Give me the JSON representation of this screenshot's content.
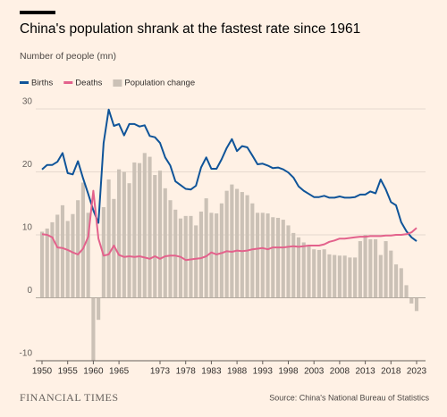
{
  "chart_data": {
    "type": "combo",
    "title": "China's population shrank at the fastest rate since 1961",
    "subtitle": "Number of people (mn)",
    "x": [
      1950,
      1951,
      1952,
      1953,
      1954,
      1955,
      1956,
      1957,
      1958,
      1959,
      1960,
      1961,
      1962,
      1963,
      1964,
      1965,
      1966,
      1967,
      1968,
      1969,
      1970,
      1971,
      1972,
      1973,
      1974,
      1975,
      1976,
      1977,
      1978,
      1979,
      1980,
      1981,
      1982,
      1983,
      1984,
      1985,
      1986,
      1987,
      1988,
      1989,
      1990,
      1991,
      1992,
      1993,
      1994,
      1995,
      1996,
      1997,
      1998,
      1999,
      2000,
      2001,
      2002,
      2003,
      2004,
      2005,
      2006,
      2007,
      2008,
      2009,
      2010,
      2011,
      2012,
      2013,
      2014,
      2015,
      2016,
      2017,
      2018,
      2019,
      2020,
      2021,
      2022,
      2023
    ],
    "series": [
      {
        "name": "Births",
        "type": "line",
        "color": "#0f5499",
        "values": [
          20.4,
          21.1,
          21.1,
          21.6,
          23.0,
          19.8,
          19.6,
          21.7,
          19.0,
          16.5,
          13.9,
          11.9,
          24.6,
          29.9,
          27.3,
          27.6,
          25.8,
          27.6,
          27.6,
          27.2,
          27.4,
          25.7,
          25.5,
          24.6,
          22.3,
          21.0,
          18.5,
          17.9,
          17.3,
          17.2,
          17.8,
          20.7,
          22.3,
          20.5,
          20.5,
          22.0,
          23.8,
          25.2,
          23.3,
          24.1,
          23.9,
          22.6,
          21.2,
          21.3,
          21.0,
          20.6,
          20.7,
          20.4,
          19.9,
          19.1,
          17.7,
          17.0,
          16.5,
          16.0,
          16.0,
          16.2,
          15.9,
          15.9,
          16.1,
          15.9,
          15.9,
          16.0,
          16.4,
          16.4,
          16.9,
          16.6,
          18.8,
          17.2,
          15.2,
          14.7,
          12.0,
          10.6,
          9.6,
          9.0
        ]
      },
      {
        "name": "Deaths",
        "type": "line",
        "color": "#e3628c",
        "values": [
          10.1,
          10.0,
          9.6,
          8.0,
          7.9,
          7.6,
          7.2,
          6.9,
          7.8,
          9.7,
          17.0,
          9.4,
          6.7,
          6.9,
          8.3,
          6.8,
          6.5,
          6.6,
          6.5,
          6.6,
          6.4,
          6.2,
          6.6,
          6.2,
          6.6,
          6.7,
          6.7,
          6.5,
          6.0,
          6.1,
          6.2,
          6.3,
          6.6,
          7.2,
          6.9,
          7.1,
          7.4,
          7.3,
          7.5,
          7.4,
          7.5,
          7.7,
          7.8,
          7.9,
          7.7,
          8.0,
          8.0,
          8.0,
          8.1,
          8.2,
          8.1,
          8.2,
          8.3,
          8.3,
          8.3,
          8.5,
          8.9,
          9.1,
          9.4,
          9.4,
          9.5,
          9.6,
          9.7,
          9.7,
          9.8,
          9.8,
          9.8,
          9.9,
          9.9,
          10.0,
          10.0,
          10.1,
          10.4,
          11.1
        ]
      },
      {
        "name": "Population change",
        "type": "bar",
        "color": "#cbc1b6",
        "values": [
          10.5,
          11.0,
          12.0,
          13.2,
          14.7,
          12.2,
          13.3,
          15.5,
          18.3,
          13.5,
          -10.0,
          -3.5,
          14.4,
          18.8,
          15.7,
          20.4,
          20.0,
          18.2,
          21.5,
          21.4,
          23.0,
          22.4,
          19.5,
          20.2,
          17.4,
          15.5,
          14.0,
          12.6,
          13.0,
          13.0,
          11.5,
          13.7,
          15.8,
          13.5,
          13.4,
          15.0,
          17.0,
          18.0,
          17.3,
          16.8,
          16.3,
          15.0,
          13.5,
          13.5,
          13.4,
          12.8,
          12.7,
          12.4,
          11.5,
          10.3,
          9.6,
          8.8,
          8.3,
          7.7,
          7.6,
          7.7,
          6.9,
          6.8,
          6.7,
          6.7,
          6.4,
          6.4,
          9.0,
          10.0,
          9.3,
          9.3,
          6.8,
          9.0,
          7.5,
          5.3,
          4.7,
          2.0,
          -0.9,
          -2.1
        ]
      }
    ],
    "ylim": [
      -10,
      30
    ],
    "yticks": [
      -10,
      0,
      10,
      20,
      30
    ],
    "xlim": [
      1950,
      2023
    ],
    "xticks": [
      1950,
      1955,
      1960,
      1965,
      1973,
      1978,
      1983,
      1988,
      1993,
      1998,
      2003,
      2008,
      2013,
      2018,
      2023
    ],
    "grid": true,
    "branding": "FINANCIAL TIMES",
    "source": "Source: China's National Bureau of Statistics"
  }
}
